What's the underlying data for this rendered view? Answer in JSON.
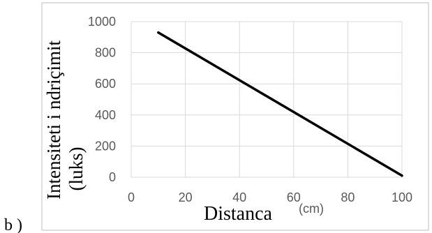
{
  "panel_label": "b )",
  "chart_data": {
    "type": "line",
    "title": "",
    "xlabel": "Distanca",
    "xlabel_unit": "(cm)",
    "ylabel_line1": "Intensiteti i ndriçimit",
    "ylabel_line2": "(luks)",
    "xlim": [
      0,
      100
    ],
    "ylim": [
      0,
      1000
    ],
    "x_ticks": [
      0,
      20,
      40,
      60,
      80,
      100
    ],
    "y_ticks": [
      0,
      200,
      400,
      600,
      800,
      1000
    ],
    "grid": true,
    "series": [
      {
        "x": [
          10,
          100
        ],
        "y": [
          930,
          10
        ]
      }
    ],
    "colors": {
      "line": "#000000",
      "grid": "#d9d9d9",
      "frame": "#bfbfbf",
      "tick_text": "#595959"
    }
  }
}
